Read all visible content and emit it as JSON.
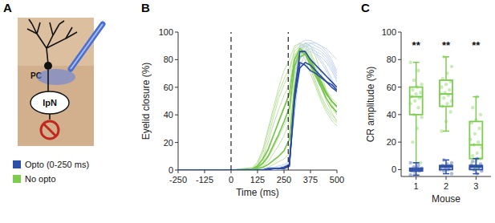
{
  "diagram": {
    "title": "A",
    "labels": {
      "cell": "PC",
      "nucleus": "IpN"
    }
  },
  "chart_data": [
    {
      "type": "line",
      "title": "B",
      "x_label": "Time (ms)",
      "y_label": "Eyelid closure (%)",
      "x": [
        -250,
        -125,
        0,
        100,
        125,
        150,
        175,
        200,
        225,
        250,
        275,
        300,
        325,
        350,
        375,
        400,
        425,
        450,
        475,
        500
      ],
      "xlim": [
        -250,
        500
      ],
      "xticks": [
        -250,
        -125,
        0,
        125,
        250,
        375,
        500
      ],
      "ylim": [
        0,
        100
      ],
      "yticks": [
        0,
        20,
        40,
        60,
        80,
        100
      ],
      "vlines": [
        0,
        270
      ],
      "series": [
        {
          "color": "#bfe3a6",
          "values": [
            0,
            0,
            0,
            2,
            6,
            15,
            30,
            45,
            60,
            72,
            80,
            90,
            92,
            88,
            80,
            70,
            60,
            50,
            42,
            35
          ]
        },
        {
          "color": "#bfe3a6",
          "values": [
            0,
            0,
            0,
            0,
            2,
            6,
            14,
            25,
            36,
            46,
            55,
            82,
            90,
            86,
            75,
            64,
            54,
            46,
            40,
            36
          ]
        },
        {
          "color": "#bfe3a6",
          "values": [
            0,
            0,
            0,
            0,
            1,
            3,
            6,
            12,
            18,
            25,
            35,
            70,
            88,
            90,
            84,
            74,
            62,
            52,
            45,
            40
          ]
        },
        {
          "color": "#bfe3a6",
          "values": [
            0,
            0,
            0,
            1,
            4,
            12,
            24,
            38,
            52,
            62,
            70,
            88,
            92,
            90,
            82,
            72,
            64,
            56,
            50,
            45
          ]
        },
        {
          "color": "#bfe3a6",
          "values": [
            0,
            0,
            0,
            0,
            0,
            1,
            2,
            4,
            6,
            8,
            12,
            55,
            85,
            92,
            90,
            82,
            70,
            58,
            48,
            40
          ]
        },
        {
          "color": "#bfe3a6",
          "values": [
            0,
            0,
            0,
            0,
            3,
            9,
            20,
            33,
            44,
            54,
            62,
            84,
            86,
            80,
            70,
            60,
            50,
            42,
            36,
            32
          ]
        },
        {
          "color": "#bfe3a6",
          "values": [
            0,
            0,
            0,
            0,
            1,
            4,
            9,
            16,
            24,
            32,
            40,
            76,
            90,
            92,
            86,
            76,
            66,
            58,
            52,
            48
          ]
        },
        {
          "color": "#bfe3a6",
          "values": [
            0,
            0,
            0,
            1,
            5,
            14,
            28,
            42,
            56,
            66,
            74,
            86,
            90,
            84,
            74,
            62,
            52,
            44,
            38,
            34
          ]
        },
        {
          "color": "#c6d5ef",
          "values": [
            0,
            0,
            0,
            0,
            0,
            0,
            0,
            1,
            1,
            1,
            2,
            60,
            90,
            92,
            92,
            90,
            88,
            84,
            78,
            70
          ]
        },
        {
          "color": "#c6d5ef",
          "values": [
            0,
            0,
            0,
            0,
            0,
            0,
            1,
            1,
            2,
            2,
            4,
            50,
            85,
            90,
            90,
            88,
            86,
            82,
            76,
            68
          ]
        },
        {
          "color": "#c6d5ef",
          "values": [
            0,
            0,
            0,
            0,
            0,
            0,
            0,
            0,
            1,
            1,
            2,
            65,
            92,
            94,
            94,
            92,
            90,
            86,
            80,
            72
          ]
        },
        {
          "color": "#c6d5ef",
          "values": [
            0,
            0,
            0,
            0,
            0,
            1,
            1,
            2,
            2,
            3,
            5,
            45,
            80,
            86,
            88,
            86,
            84,
            80,
            74,
            66
          ]
        },
        {
          "color": "#c6d5ef",
          "values": [
            0,
            0,
            0,
            0,
            0,
            0,
            0,
            0,
            0,
            1,
            2,
            55,
            88,
            92,
            90,
            86,
            80,
            74,
            66,
            58
          ]
        },
        {
          "color": "#c6d5ef",
          "values": [
            0,
            0,
            0,
            0,
            1,
            1,
            2,
            2,
            3,
            4,
            6,
            40,
            75,
            84,
            86,
            84,
            82,
            78,
            72,
            64
          ]
        },
        {
          "color": "#c6d5ef",
          "values": [
            0,
            0,
            0,
            0,
            0,
            0,
            0,
            1,
            1,
            1,
            3,
            58,
            88,
            90,
            88,
            84,
            78,
            72,
            64,
            56
          ]
        },
        {
          "color": "#c6d5ef",
          "values": [
            0,
            0,
            0,
            0,
            0,
            0,
            1,
            1,
            1,
            2,
            3,
            48,
            82,
            88,
            92,
            92,
            90,
            88,
            84,
            80
          ]
        },
        {
          "color": "#74c447",
          "values": [
            0,
            0,
            0,
            1,
            3,
            8,
            15,
            25,
            35,
            45,
            55,
            80,
            88,
            85,
            78,
            70,
            62,
            55,
            50,
            46
          ]
        },
        {
          "color": "#74c447",
          "values": [
            0,
            0,
            0,
            0,
            2,
            5,
            10,
            18,
            26,
            35,
            45,
            75,
            86,
            84,
            76,
            68,
            60,
            52,
            46,
            42
          ]
        },
        {
          "color": "#74c447",
          "values": [
            0,
            0,
            0,
            0,
            1,
            2,
            4,
            7,
            10,
            14,
            22,
            60,
            82,
            84,
            80,
            72,
            64,
            56,
            50,
            46
          ]
        },
        {
          "color": "#2a4aa0",
          "values": [
            0,
            0,
            0,
            0,
            0,
            0,
            1,
            1,
            1,
            1,
            3,
            55,
            86,
            86,
            80,
            76,
            72,
            68,
            64,
            60
          ]
        },
        {
          "color": "#2a4aa0",
          "values": [
            0,
            0,
            0,
            0,
            0,
            0,
            0,
            1,
            1,
            2,
            3,
            50,
            78,
            76,
            72,
            70,
            67,
            64,
            60,
            57
          ]
        },
        {
          "color": "#2a4aa0",
          "values": [
            0,
            0,
            0,
            0,
            0,
            0,
            1,
            1,
            1,
            2,
            4,
            52,
            74,
            78,
            76,
            72,
            68,
            64,
            62,
            58
          ]
        }
      ]
    },
    {
      "type": "box",
      "title": "C",
      "x_label": "Mouse",
      "y_label": "CR amplitude (%)",
      "categories": [
        "1",
        "2",
        "3"
      ],
      "ylim": [
        -5,
        100
      ],
      "yticks": [
        0,
        20,
        40,
        60,
        80,
        100
      ],
      "series": [
        {
          "name": "No opto",
          "color": "#7dcc4f",
          "whisker_low": [
            5,
            28,
            0
          ],
          "q1": [
            40,
            46,
            8
          ],
          "median": [
            53,
            55,
            18
          ],
          "q3": [
            60,
            65,
            35
          ],
          "whisker_high": [
            78,
            82,
            53
          ],
          "points": [
            [
              78,
              72,
              65,
              62,
              60,
              58,
              56,
              55,
              53,
              52,
              50,
              48,
              45,
              40,
              38,
              30,
              20,
              5
            ],
            [
              82,
              75,
              70,
              66,
              64,
              62,
              60,
              58,
              56,
              55,
              54,
              52,
              50,
              48,
              46,
              42,
              35,
              28
            ],
            [
              53,
              45,
              40,
              36,
              34,
              30,
              26,
              22,
              20,
              18,
              16,
              12,
              10,
              8,
              6,
              4,
              2,
              0
            ]
          ]
        },
        {
          "name": "Opto (0-250 ms)",
          "color": "#2d4fa8",
          "whisker_low": [
            -4,
            -3,
            -3
          ],
          "q1": [
            -1,
            0,
            0
          ],
          "median": [
            0,
            2,
            2
          ],
          "q3": [
            1,
            3,
            3
          ],
          "whisker_high": [
            5,
            7,
            8
          ],
          "points": [
            [
              5,
              3,
              2,
              1,
              1,
              0,
              0,
              0,
              -1,
              -1,
              -2,
              -4
            ],
            [
              7,
              5,
              4,
              3,
              3,
              2,
              2,
              1,
              1,
              0,
              0,
              -1,
              -3
            ],
            [
              8,
              6,
              4,
              3,
              3,
              2,
              2,
              1,
              1,
              0,
              -1,
              -3
            ]
          ]
        }
      ],
      "annotations": [
        {
          "text": "**",
          "x": 0,
          "y": 88
        },
        {
          "text": "**",
          "x": 1,
          "y": 88
        },
        {
          "text": "**",
          "x": 2,
          "y": 88
        }
      ]
    }
  ]
}
